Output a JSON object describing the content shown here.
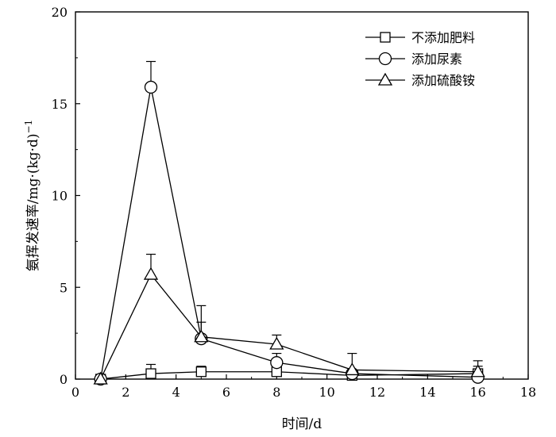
{
  "chart_data": {
    "type": "line",
    "title": "",
    "xlabel": "时间/d",
    "ylabel": "氨挥发速率/mg·(kg·d)",
    "ylabel_superscript": "−1",
    "xlim": [
      0,
      18
    ],
    "ylim": [
      0,
      20
    ],
    "xticks": [
      0,
      2,
      4,
      6,
      8,
      10,
      12,
      14,
      16,
      18
    ],
    "yticks": [
      0,
      5,
      10,
      15,
      20
    ],
    "grid": false,
    "legend_position": "top-right",
    "x": [
      1,
      3,
      5,
      8,
      11,
      16
    ],
    "series": [
      {
        "name": "不添加肥料",
        "marker": "square",
        "values": [
          0.0,
          0.3,
          0.4,
          0.4,
          0.2,
          0.3
        ],
        "error": [
          0.0,
          0.5,
          0.3,
          0.3,
          0.2,
          0.4
        ]
      },
      {
        "name": "添加尿素",
        "marker": "circle",
        "values": [
          0.0,
          15.9,
          2.2,
          0.9,
          0.3,
          0.1
        ],
        "error": [
          0.0,
          1.4,
          0.9,
          0.5,
          0.2,
          0.2
        ]
      },
      {
        "name": "添加硫酸铵",
        "marker": "triangle",
        "values": [
          0.0,
          5.7,
          2.3,
          1.9,
          0.5,
          0.4
        ],
        "error": [
          0.0,
          1.1,
          1.7,
          0.5,
          0.9,
          0.6
        ]
      }
    ]
  }
}
